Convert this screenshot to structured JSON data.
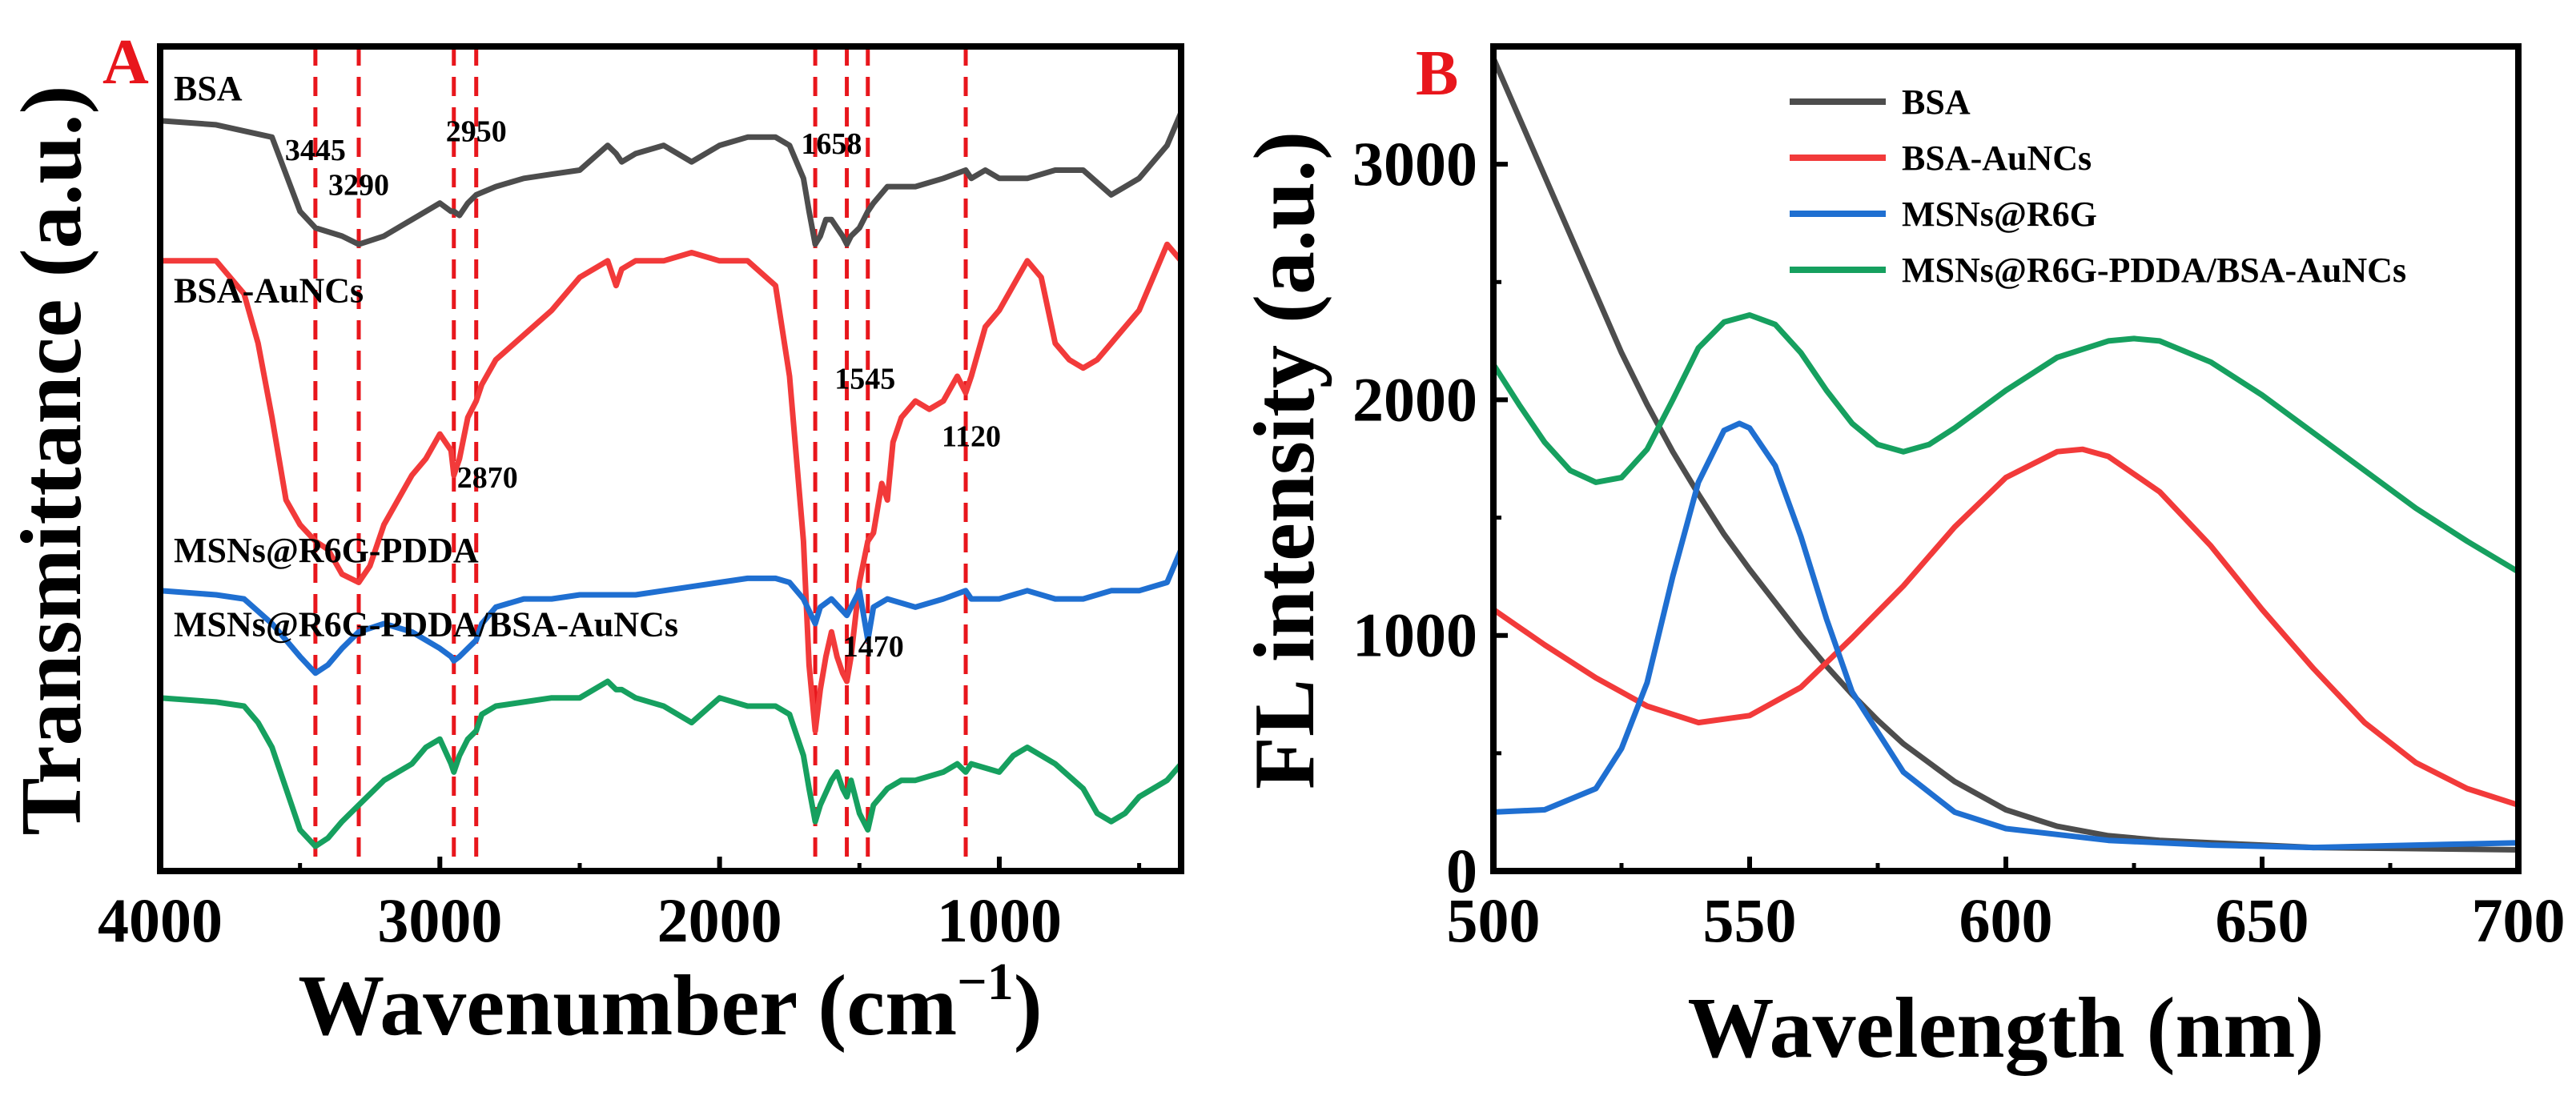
{
  "chart_data": [
    {
      "panel_label": "A",
      "type": "line",
      "xlabel": "Wavenumber (cm",
      "xlabel_unit_exponent": "−1",
      "xlabel_close": ")",
      "ylabel": "Transmittance (a.u.)",
      "xlim": [
        4000,
        350
      ],
      "x_reversed": true,
      "xticks": [
        4000,
        3000,
        2000,
        1000
      ],
      "yticks_shown": false,
      "series": [
        {
          "name": "BSA",
          "color": "#4d4d4d",
          "x": [
            4000,
            3800,
            3600,
            3500,
            3445,
            3350,
            3290,
            3200,
            3100,
            3000,
            2960,
            2950,
            2930,
            2900,
            2870,
            2800,
            2700,
            2600,
            2500,
            2400,
            2370,
            2350,
            2300,
            2200,
            2100,
            2000,
            1900,
            1800,
            1750,
            1700,
            1680,
            1658,
            1640,
            1620,
            1600,
            1580,
            1560,
            1545,
            1530,
            1500,
            1470,
            1450,
            1400,
            1300,
            1200,
            1120,
            1100,
            1050,
            1000,
            900,
            800,
            700,
            600,
            500,
            400,
            350
          ],
          "y": [
            0.91,
            0.905,
            0.89,
            0.8,
            0.78,
            0.77,
            0.76,
            0.77,
            0.79,
            0.81,
            0.8,
            0.8,
            0.795,
            0.81,
            0.82,
            0.83,
            0.84,
            0.845,
            0.85,
            0.88,
            0.87,
            0.86,
            0.87,
            0.88,
            0.86,
            0.88,
            0.89,
            0.89,
            0.88,
            0.84,
            0.8,
            0.76,
            0.77,
            0.79,
            0.79,
            0.78,
            0.77,
            0.76,
            0.77,
            0.78,
            0.8,
            0.81,
            0.83,
            0.83,
            0.84,
            0.85,
            0.84,
            0.85,
            0.84,
            0.84,
            0.85,
            0.85,
            0.82,
            0.84,
            0.88,
            0.92
          ]
        },
        {
          "name": "BSA-AuNCs",
          "color": "#f23a3a",
          "x": [
            4000,
            3900,
            3800,
            3700,
            3650,
            3600,
            3550,
            3500,
            3445,
            3400,
            3350,
            3290,
            3250,
            3200,
            3100,
            3050,
            3000,
            2960,
            2950,
            2930,
            2900,
            2870,
            2850,
            2800,
            2700,
            2600,
            2500,
            2400,
            2370,
            2350,
            2300,
            2200,
            2100,
            2000,
            1900,
            1800,
            1750,
            1700,
            1680,
            1658,
            1640,
            1620,
            1600,
            1580,
            1560,
            1545,
            1530,
            1500,
            1470,
            1450,
            1420,
            1400,
            1380,
            1350,
            1300,
            1250,
            1200,
            1150,
            1120,
            1100,
            1050,
            1000,
            950,
            900,
            850,
            800,
            750,
            700,
            650,
            600,
            550,
            500,
            450,
            400,
            350
          ],
          "y": [
            0.74,
            0.74,
            0.74,
            0.7,
            0.64,
            0.55,
            0.45,
            0.42,
            0.4,
            0.39,
            0.36,
            0.35,
            0.37,
            0.42,
            0.48,
            0.5,
            0.53,
            0.51,
            0.48,
            0.5,
            0.55,
            0.57,
            0.59,
            0.62,
            0.65,
            0.68,
            0.72,
            0.74,
            0.71,
            0.73,
            0.74,
            0.74,
            0.75,
            0.74,
            0.74,
            0.71,
            0.6,
            0.4,
            0.25,
            0.17,
            0.22,
            0.26,
            0.29,
            0.26,
            0.24,
            0.23,
            0.26,
            0.35,
            0.4,
            0.41,
            0.47,
            0.45,
            0.52,
            0.55,
            0.57,
            0.56,
            0.57,
            0.6,
            0.58,
            0.6,
            0.66,
            0.68,
            0.71,
            0.74,
            0.72,
            0.64,
            0.62,
            0.61,
            0.62,
            0.64,
            0.66,
            0.68,
            0.72,
            0.76,
            0.74
          ]
        },
        {
          "name": "MSNs@R6G-PDDA",
          "color": "#1f6fd1",
          "x": [
            4000,
            3800,
            3700,
            3600,
            3500,
            3445,
            3400,
            3350,
            3290,
            3200,
            3100,
            3000,
            2960,
            2950,
            2930,
            2900,
            2870,
            2850,
            2800,
            2700,
            2600,
            2500,
            2400,
            2300,
            2200,
            2100,
            2000,
            1900,
            1800,
            1750,
            1700,
            1658,
            1640,
            1600,
            1545,
            1500,
            1470,
            1450,
            1400,
            1300,
            1200,
            1120,
            1100,
            1000,
            900,
            800,
            700,
            600,
            500,
            400,
            350
          ],
          "y": [
            0.34,
            0.335,
            0.33,
            0.3,
            0.26,
            0.24,
            0.25,
            0.27,
            0.29,
            0.3,
            0.29,
            0.27,
            0.26,
            0.255,
            0.26,
            0.27,
            0.28,
            0.3,
            0.32,
            0.33,
            0.33,
            0.335,
            0.335,
            0.335,
            0.34,
            0.345,
            0.35,
            0.355,
            0.355,
            0.35,
            0.33,
            0.3,
            0.32,
            0.33,
            0.31,
            0.34,
            0.28,
            0.32,
            0.33,
            0.32,
            0.33,
            0.34,
            0.33,
            0.33,
            0.34,
            0.33,
            0.33,
            0.34,
            0.34,
            0.35,
            0.39
          ]
        },
        {
          "name": "MSNs@R6G-PDDA/BSA-AuNCs",
          "color": "#16a05f",
          "x": [
            4000,
            3800,
            3700,
            3650,
            3600,
            3550,
            3500,
            3445,
            3400,
            3350,
            3290,
            3200,
            3100,
            3050,
            3000,
            2960,
            2950,
            2930,
            2900,
            2870,
            2850,
            2800,
            2700,
            2600,
            2500,
            2400,
            2370,
            2350,
            2300,
            2200,
            2100,
            2000,
            1900,
            1800,
            1750,
            1700,
            1680,
            1658,
            1640,
            1600,
            1580,
            1560,
            1545,
            1530,
            1500,
            1470,
            1450,
            1400,
            1350,
            1300,
            1200,
            1150,
            1120,
            1100,
            1000,
            950,
            900,
            850,
            800,
            700,
            650,
            600,
            550,
            500,
            400,
            350
          ],
          "y": [
            0.21,
            0.205,
            0.2,
            0.18,
            0.15,
            0.1,
            0.05,
            0.03,
            0.04,
            0.06,
            0.08,
            0.11,
            0.13,
            0.15,
            0.16,
            0.13,
            0.12,
            0.14,
            0.16,
            0.17,
            0.19,
            0.2,
            0.205,
            0.21,
            0.21,
            0.23,
            0.22,
            0.22,
            0.21,
            0.2,
            0.18,
            0.21,
            0.2,
            0.2,
            0.19,
            0.14,
            0.1,
            0.06,
            0.08,
            0.11,
            0.12,
            0.1,
            0.09,
            0.11,
            0.07,
            0.05,
            0.08,
            0.1,
            0.11,
            0.11,
            0.12,
            0.13,
            0.12,
            0.13,
            0.12,
            0.14,
            0.15,
            0.14,
            0.13,
            0.1,
            0.07,
            0.06,
            0.07,
            0.09,
            0.11,
            0.13
          ]
        }
      ],
      "reference_lines": [
        3445,
        3290,
        2950,
        2870,
        1658,
        1545,
        1470,
        1120
      ],
      "reference_line_color": "#e8161c",
      "annotations": [
        {
          "text": "3445",
          "x": 3445,
          "y": 0.862
        },
        {
          "text": "3290",
          "x": 3290,
          "y": 0.82
        },
        {
          "text": "2950",
          "x": 2870,
          "y": 0.885
        },
        {
          "text": "1658",
          "x": 1600,
          "y": 0.87
        },
        {
          "text": "1545",
          "x": 1480,
          "y": 0.585
        },
        {
          "text": "1120",
          "x": 1100,
          "y": 0.515
        },
        {
          "text": "2870",
          "x": 2830,
          "y": 0.465
        },
        {
          "text": "1470",
          "x": 1450,
          "y": 0.26
        }
      ],
      "series_labels": [
        {
          "text": "BSA",
          "x": 3980,
          "y": 0.935
        },
        {
          "text": "BSA-AuNCs",
          "x": 3980,
          "y": 0.69
        },
        {
          "text": "MSNs@R6G-PDDA",
          "x": 3980,
          "y": 0.375
        },
        {
          "text": "MSNs@R6G-PDDA/BSA-AuNCs",
          "x": 3980,
          "y": 0.285
        }
      ]
    },
    {
      "panel_label": "B",
      "type": "line",
      "xlabel": "Wavelength (nm)",
      "ylabel": "FL intensity (a.u.)",
      "xlim": [
        500,
        700
      ],
      "ylim": [
        0,
        3500
      ],
      "xticks": [
        500,
        550,
        600,
        650,
        700
      ],
      "yticks": [
        0,
        1000,
        2000,
        3000
      ],
      "legend_position": "top-right",
      "series": [
        {
          "name": "BSA",
          "color": "#4d4d4d",
          "x": [
            500,
            505,
            510,
            515,
            520,
            525,
            530,
            535,
            540,
            545,
            550,
            555,
            560,
            565,
            570,
            575,
            580,
            590,
            600,
            610,
            620,
            630,
            640,
            650,
            660,
            680,
            700
          ],
          "y": [
            3450,
            3200,
            2950,
            2700,
            2450,
            2200,
            1980,
            1780,
            1600,
            1430,
            1280,
            1140,
            1000,
            870,
            750,
            640,
            540,
            380,
            260,
            190,
            150,
            130,
            120,
            110,
            100,
            95,
            90
          ]
        },
        {
          "name": "BSA-AuNCs",
          "color": "#f23a3a",
          "x": [
            500,
            510,
            520,
            530,
            540,
            550,
            560,
            570,
            580,
            590,
            600,
            610,
            615,
            620,
            630,
            640,
            650,
            660,
            670,
            680,
            690,
            700
          ],
          "y": [
            1110,
            960,
            820,
            700,
            630,
            660,
            780,
            990,
            1210,
            1460,
            1670,
            1780,
            1790,
            1760,
            1610,
            1380,
            1110,
            860,
            630,
            460,
            350,
            280
          ]
        },
        {
          "name": "MSNs@R6G",
          "color": "#1f6fd1",
          "x": [
            500,
            510,
            520,
            525,
            530,
            535,
            540,
            545,
            548,
            550,
            555,
            560,
            565,
            570,
            580,
            590,
            600,
            620,
            640,
            660,
            680,
            700
          ],
          "y": [
            250,
            260,
            350,
            520,
            800,
            1250,
            1650,
            1870,
            1900,
            1880,
            1720,
            1420,
            1070,
            760,
            420,
            250,
            180,
            130,
            110,
            100,
            110,
            120
          ]
        },
        {
          "name": "MSNs@R6G-PDDA/BSA-AuNCs",
          "color": "#16a05f",
          "x": [
            500,
            505,
            510,
            515,
            520,
            525,
            530,
            535,
            540,
            545,
            550,
            555,
            560,
            565,
            570,
            575,
            580,
            585,
            590,
            600,
            610,
            620,
            625,
            630,
            640,
            650,
            660,
            670,
            680,
            690,
            700
          ],
          "y": [
            2150,
            1980,
            1820,
            1700,
            1650,
            1670,
            1790,
            2000,
            2220,
            2330,
            2360,
            2320,
            2200,
            2040,
            1900,
            1810,
            1780,
            1810,
            1880,
            2040,
            2180,
            2250,
            2260,
            2250,
            2160,
            2020,
            1860,
            1700,
            1540,
            1400,
            1270
          ]
        }
      ]
    }
  ]
}
